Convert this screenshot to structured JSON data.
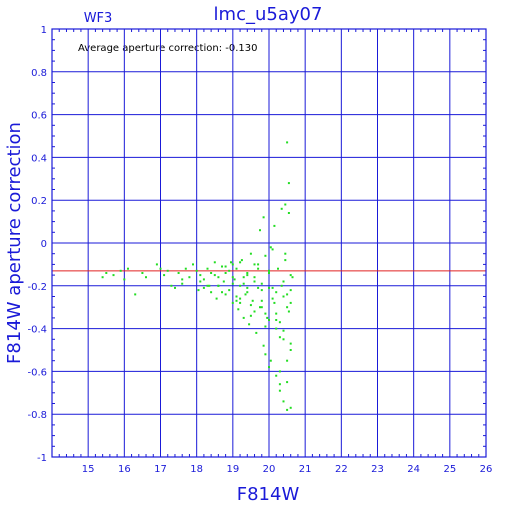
{
  "colors": {
    "frame": "#1a1ad8",
    "points": "#22dd22",
    "average_line": "#e02020",
    "annotation": "#000000",
    "background": "#ffffff"
  },
  "chart_data": {
    "type": "scatter",
    "title": "lmc_u5ay07",
    "subtitle": "WF3",
    "xlabel": "F814W",
    "ylabel": "F814W aperture correction",
    "annotation": "Average aperture correction: -0.130",
    "average": -0.13,
    "xlim": [
      14,
      26
    ],
    "ylim": [
      -1,
      1
    ],
    "x_ticks": [
      15,
      16,
      17,
      18,
      19,
      20,
      21,
      22,
      23,
      24,
      25,
      26
    ],
    "y_ticks": [
      -1,
      -0.8,
      -0.6,
      -0.4,
      -0.2,
      0,
      0.2,
      0.4,
      0.6,
      0.8,
      1
    ],
    "x_tick_labels": [
      "15",
      "16",
      "17",
      "18",
      "19",
      "20",
      "21",
      "22",
      "23",
      "24",
      "25",
      "26"
    ],
    "y_tick_labels": [
      "-1",
      "-0.8",
      "-0.6",
      "-0.4",
      "-0.2",
      "0",
      "0.2",
      "0.4",
      "0.6",
      "0.8",
      "1"
    ],
    "grid": true,
    "series": [
      {
        "x": [
          15.4,
          15.5,
          15.7,
          15.9,
          16.0,
          16.1,
          16.3,
          16.5,
          16.6,
          16.9,
          17.0,
          17.1,
          17.2,
          17.4,
          17.5,
          17.6,
          17.7,
          17.8,
          17.9,
          18.0,
          18.05,
          18.1,
          18.2,
          18.3,
          18.35,
          18.4,
          18.5,
          18.55,
          18.6,
          18.7,
          18.75,
          18.8,
          18.9,
          18.95,
          19.0,
          19.05,
          19.1,
          19.15,
          19.2,
          19.25,
          19.3,
          19.35,
          19.4,
          19.45,
          19.5,
          19.55,
          19.6,
          19.65,
          19.7,
          19.75,
          19.8,
          19.85,
          19.9,
          19.95,
          20.0,
          20.05,
          20.1,
          20.15,
          20.2,
          20.25,
          20.3,
          20.35,
          20.4,
          20.45,
          20.5,
          20.55,
          20.6,
          20.65,
          18.1,
          18.3,
          18.5,
          18.7,
          18.9,
          19.1,
          19.3,
          19.5,
          19.7,
          19.9,
          20.1,
          20.3,
          20.5,
          19.0,
          19.2,
          19.4,
          19.6,
          19.8,
          20.0,
          20.2,
          20.4,
          20.6,
          19.1,
          19.3,
          19.5,
          19.7,
          19.9,
          20.1,
          20.3,
          20.5,
          19.75,
          19.85,
          20.05,
          20.15,
          20.35,
          20.45,
          20.55,
          19.9,
          20.0,
          20.3,
          20.4,
          20.5,
          20.6,
          20.2,
          20.3,
          20.5,
          20.6,
          18.6,
          18.8,
          19.0,
          19.2,
          19.4,
          19.6,
          19.8,
          20.0,
          20.2,
          20.4,
          20.6,
          17.3,
          17.6,
          18.2,
          18.4,
          18.6,
          18.8,
          19.0,
          19.2,
          19.4,
          19.6,
          19.8,
          20.0,
          20.2,
          20.4,
          20.6,
          20.5,
          20.45,
          20.55
        ],
        "y": [
          -0.16,
          -0.14,
          -0.15,
          -0.13,
          -0.17,
          -0.12,
          -0.24,
          -0.14,
          -0.16,
          -0.1,
          -0.12,
          -0.15,
          -0.13,
          -0.21,
          -0.14,
          -0.19,
          -0.12,
          -0.16,
          -0.1,
          -0.13,
          -0.22,
          -0.15,
          -0.17,
          -0.12,
          -0.2,
          -0.14,
          -0.09,
          -0.26,
          -0.16,
          -0.11,
          -0.18,
          -0.14,
          -0.22,
          -0.09,
          -0.28,
          -0.17,
          -0.12,
          -0.31,
          -0.2,
          -0.08,
          -0.35,
          -0.24,
          -0.15,
          -0.38,
          -0.05,
          -0.27,
          -0.18,
          -0.42,
          -0.1,
          -0.3,
          -0.22,
          -0.48,
          -0.06,
          -0.35,
          -0.14,
          -0.55,
          -0.03,
          -0.28,
          -0.4,
          -0.12,
          -0.6,
          -0.2,
          -0.45,
          -0.08,
          -0.65,
          -0.32,
          -0.5,
          -0.16,
          -0.18,
          -0.2,
          -0.15,
          -0.23,
          -0.13,
          -0.25,
          -0.19,
          -0.29,
          -0.12,
          -0.33,
          -0.21,
          -0.37,
          -0.24,
          -0.1,
          -0.26,
          -0.14,
          -0.32,
          -0.19,
          -0.36,
          -0.23,
          -0.41,
          -0.28,
          -0.27,
          -0.16,
          -0.34,
          -0.21,
          -0.39,
          -0.26,
          -0.44,
          -0.3,
          0.06,
          0.12,
          -0.02,
          0.08,
          0.16,
          -0.05,
          0.14,
          -0.52,
          -0.58,
          -0.69,
          -0.74,
          -0.78,
          -0.77,
          -0.62,
          -0.66,
          -0.55,
          -0.47,
          -0.2,
          -0.24,
          -0.16,
          -0.28,
          -0.21,
          -0.1,
          -0.3,
          -0.13,
          -0.36,
          -0.18,
          -0.22,
          -0.2,
          -0.17,
          -0.21,
          -0.23,
          -0.2,
          -0.11,
          -0.19,
          -0.09,
          -0.23,
          -0.16,
          -0.27,
          -0.21,
          -0.33,
          -0.25,
          -0.15,
          0.47,
          0.18,
          0.28
        ]
      }
    ]
  }
}
